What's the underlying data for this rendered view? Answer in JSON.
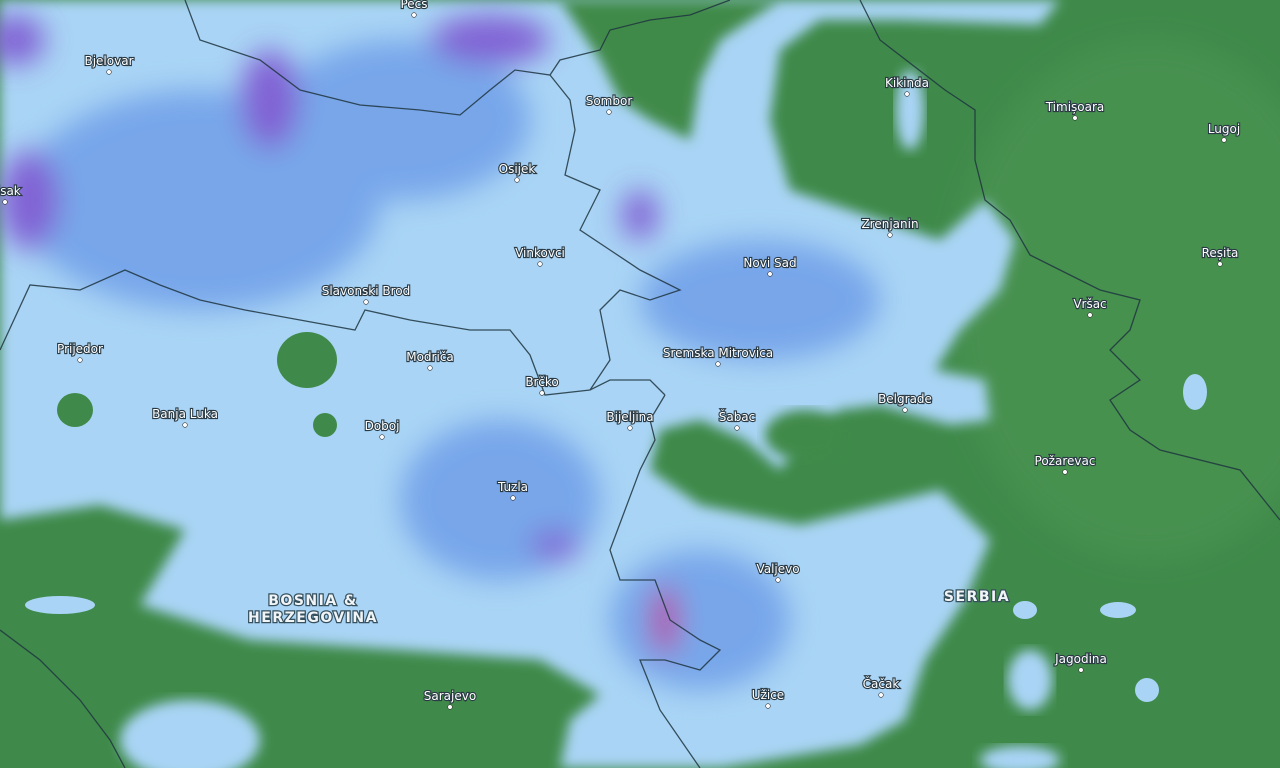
{
  "map": {
    "type": "precipitation-radar",
    "colors": {
      "land": "#3f8a4a",
      "light_rain": "#a9d4f5",
      "moderate_rain": "#6f9fe8",
      "heavy_rain": "#7a4fcf",
      "border": "#1f3540"
    },
    "countries": [
      {
        "lines": [
          "BOSNIA &",
          "HERZEGOVINA"
        ]
      },
      {
        "lines": [
          "SERBIA"
        ]
      }
    ],
    "cities": [
      {
        "name": "Pécs"
      },
      {
        "name": "Bjelovar"
      },
      {
        "name": "Sombor"
      },
      {
        "name": "Kikinda"
      },
      {
        "name": "Timișoara"
      },
      {
        "name": "Lugoj"
      },
      {
        "name": "Osijek"
      },
      {
        "name": "Sisak"
      },
      {
        "name": "Zrenjanin"
      },
      {
        "name": "Vinkovci"
      },
      {
        "name": "Novi Sad"
      },
      {
        "name": "Reșita"
      },
      {
        "name": "Slavonski Brod"
      },
      {
        "name": "Vršac"
      },
      {
        "name": "Prijedor"
      },
      {
        "name": "Modriča"
      },
      {
        "name": "Sremska Mitrovica"
      },
      {
        "name": "Brčko"
      },
      {
        "name": "Belgrade"
      },
      {
        "name": "Banja Luka"
      },
      {
        "name": "Doboj"
      },
      {
        "name": "Bijeljina"
      },
      {
        "name": "Šabac"
      },
      {
        "name": "Požarevac"
      },
      {
        "name": "Tuzla"
      },
      {
        "name": "Valjevo"
      },
      {
        "name": "Jagodina"
      },
      {
        "name": "Sarajevo"
      },
      {
        "name": "Užice"
      },
      {
        "name": "Čačak"
      }
    ]
  }
}
